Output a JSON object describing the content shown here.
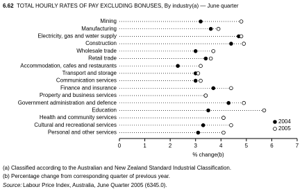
{
  "chart_data": {
    "type": "dot",
    "title_number": "6.62",
    "title": "TOTAL HOURLY RATES OF PAY EXCLUDING BONUSES, By industry(a) — June quarter",
    "categories": [
      "Mining",
      "Manufacturing",
      "Electricity, gas and water supply",
      "Construction",
      "Wholesale trade",
      "Retail trade",
      "Accommodation, cafes and restaurants",
      "Transport and storage",
      "Communication services",
      "Finance and insurance",
      "Property and business services",
      "Government administration and defence",
      "Education",
      "Health and community services",
      "Cultural and recreational services",
      "Personal and other services"
    ],
    "series": [
      {
        "name": "2004",
        "color": "#000000",
        "values": [
          3.2,
          3.6,
          4.7,
          4.4,
          3.0,
          3.4,
          2.3,
          3.0,
          3.0,
          3.7,
          3.4,
          4.3,
          3.5,
          4.1,
          3.3,
          3.1
        ]
      },
      {
        "name": "2005",
        "color": "#ffffff",
        "values": [
          4.8,
          3.9,
          4.8,
          4.9,
          3.7,
          3.6,
          3.2,
          3.1,
          3.2,
          4.4,
          3.4,
          4.9,
          5.7,
          4.1,
          4.4,
          4.1
        ]
      }
    ],
    "xlabel": "% change(b)",
    "xlim": [
      0,
      7
    ],
    "xticks": [
      0,
      1,
      2,
      3,
      4,
      5,
      6,
      7
    ],
    "legend": "lower right",
    "notes": [
      "(a) Classified according to the Australian and New Zealand Standard Industrial Classification.",
      "(b) Percentage change from corresponding quarter of previous year."
    ],
    "source_label": "Source:",
    "source": "Labour Price Index, Australia, June Quarter 2005 (6345.0)."
  }
}
